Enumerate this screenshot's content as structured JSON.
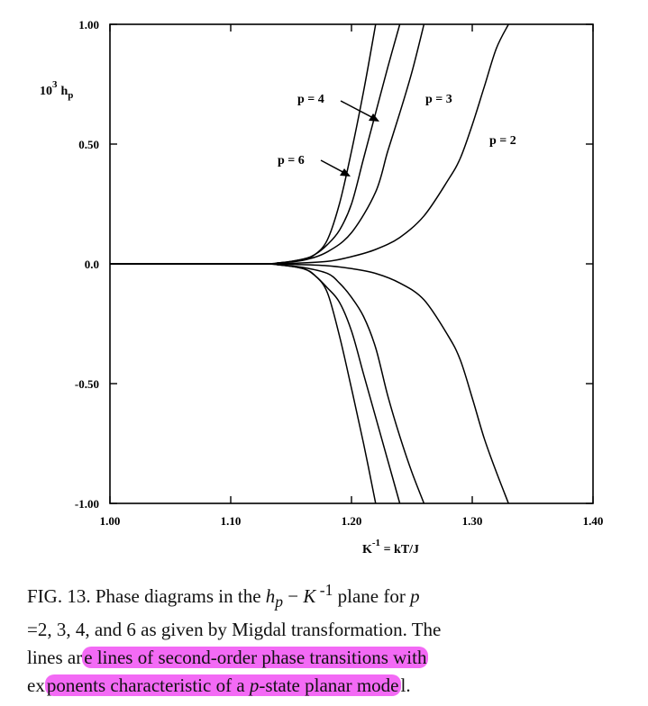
{
  "chart_data": {
    "type": "line",
    "ylabel_parts": {
      "prefix": "10",
      "sup": "3",
      "var": "h",
      "sub": "p"
    },
    "xlabel_parts": {
      "var": "K",
      "sup": "-1",
      "rest": " = kT/J"
    },
    "xlim": [
      1.0,
      1.4
    ],
    "ylim": [
      -1.0,
      1.0
    ],
    "x_ticks": [
      "1.00",
      "1.10",
      "1.20",
      "1.30",
      "1.40"
    ],
    "y_ticks": [
      "1.00",
      "0.50",
      "0.0",
      "-0.50",
      "-1.00"
    ],
    "series": [
      {
        "name": "p = 6",
        "upper": [
          [
            1.0,
            0
          ],
          [
            1.12,
            0
          ],
          [
            1.14,
            0.004
          ],
          [
            1.16,
            0.02
          ],
          [
            1.17,
            0.04
          ],
          [
            1.18,
            0.1
          ],
          [
            1.19,
            0.25
          ],
          [
            1.2,
            0.47
          ],
          [
            1.21,
            0.72
          ],
          [
            1.22,
            1.0
          ]
        ],
        "lower": [
          [
            1.0,
            0
          ],
          [
            1.12,
            0
          ],
          [
            1.14,
            -0.004
          ],
          [
            1.16,
            -0.02
          ],
          [
            1.17,
            -0.05
          ],
          [
            1.18,
            -0.12
          ],
          [
            1.19,
            -0.3
          ],
          [
            1.2,
            -0.52
          ],
          [
            1.21,
            -0.75
          ],
          [
            1.22,
            -1.0
          ]
        ]
      },
      {
        "name": "p = 4",
        "upper": [
          [
            1.0,
            0
          ],
          [
            1.12,
            0
          ],
          [
            1.14,
            0.004
          ],
          [
            1.16,
            0.02
          ],
          [
            1.17,
            0.04
          ],
          [
            1.18,
            0.08
          ],
          [
            1.19,
            0.14
          ],
          [
            1.2,
            0.25
          ],
          [
            1.21,
            0.44
          ],
          [
            1.22,
            0.63
          ],
          [
            1.23,
            0.82
          ],
          [
            1.24,
            1.0
          ]
        ],
        "lower": [
          [
            1.0,
            0
          ],
          [
            1.12,
            0
          ],
          [
            1.14,
            -0.004
          ],
          [
            1.16,
            -0.02
          ],
          [
            1.17,
            -0.05
          ],
          [
            1.18,
            -0.1
          ],
          [
            1.19,
            -0.16
          ],
          [
            1.2,
            -0.28
          ],
          [
            1.21,
            -0.46
          ],
          [
            1.22,
            -0.64
          ],
          [
            1.23,
            -0.82
          ],
          [
            1.24,
            -1.0
          ]
        ]
      },
      {
        "name": "p = 3",
        "upper": [
          [
            1.0,
            0
          ],
          [
            1.12,
            0
          ],
          [
            1.14,
            0.004
          ],
          [
            1.16,
            0.015
          ],
          [
            1.18,
            0.05
          ],
          [
            1.2,
            0.13
          ],
          [
            1.22,
            0.3
          ],
          [
            1.23,
            0.47
          ],
          [
            1.24,
            0.63
          ],
          [
            1.25,
            0.8
          ],
          [
            1.26,
            1.0
          ]
        ],
        "lower": [
          [
            1.0,
            0
          ],
          [
            1.12,
            0
          ],
          [
            1.14,
            -0.004
          ],
          [
            1.16,
            -0.015
          ],
          [
            1.18,
            -0.04
          ],
          [
            1.19,
            -0.08
          ],
          [
            1.2,
            -0.14
          ],
          [
            1.21,
            -0.22
          ],
          [
            1.22,
            -0.35
          ],
          [
            1.23,
            -0.55
          ],
          [
            1.24,
            -0.72
          ],
          [
            1.25,
            -0.87
          ],
          [
            1.26,
            -1.0
          ]
        ]
      },
      {
        "name": "p = 2",
        "upper": [
          [
            1.0,
            0
          ],
          [
            1.12,
            0
          ],
          [
            1.15,
            0.002
          ],
          [
            1.18,
            0.01
          ],
          [
            1.2,
            0.03
          ],
          [
            1.22,
            0.06
          ],
          [
            1.24,
            0.11
          ],
          [
            1.26,
            0.2
          ],
          [
            1.28,
            0.35
          ],
          [
            1.29,
            0.44
          ],
          [
            1.3,
            0.58
          ],
          [
            1.31,
            0.74
          ],
          [
            1.32,
            0.9
          ],
          [
            1.33,
            1.0
          ]
        ],
        "lower": [
          [
            1.0,
            0
          ],
          [
            1.12,
            0
          ],
          [
            1.15,
            -0.002
          ],
          [
            1.18,
            -0.008
          ],
          [
            1.2,
            -0.02
          ],
          [
            1.22,
            -0.04
          ],
          [
            1.24,
            -0.08
          ],
          [
            1.26,
            -0.15
          ],
          [
            1.28,
            -0.3
          ],
          [
            1.29,
            -0.4
          ],
          [
            1.3,
            -0.56
          ],
          [
            1.31,
            -0.73
          ],
          [
            1.32,
            -0.87
          ],
          [
            1.33,
            -1.0
          ]
        ]
      }
    ],
    "annotations": [
      "p = 4",
      "p = 3",
      "p = 6",
      "p = 2"
    ]
  },
  "caption": {
    "line1_prefix": "FIG. 13.  Phase diagrams in the ",
    "line1_h": "h",
    "line1_hsub": "p",
    "line1_mid": " − ",
    "line1_K": "K",
    "line1_Ksup": " -1",
    "line1_suffix": " plane for ",
    "line1_p": "p",
    "line2": "=2, 3, 4,  and 6 as given by Migdal transformation.  The",
    "line3_plain": "lines ar",
    "line3_hl": "e lines of second-order phase transitions with",
    "line4_plain1": "ex",
    "line4_hl_a": "ponents characteristic of a ",
    "line4_hl_p": "p",
    "line4_hl_b": "-state planar mode",
    "line4_plain2": "l."
  },
  "colors": {
    "highlight": "#f36af5",
    "ink": "#000000"
  }
}
